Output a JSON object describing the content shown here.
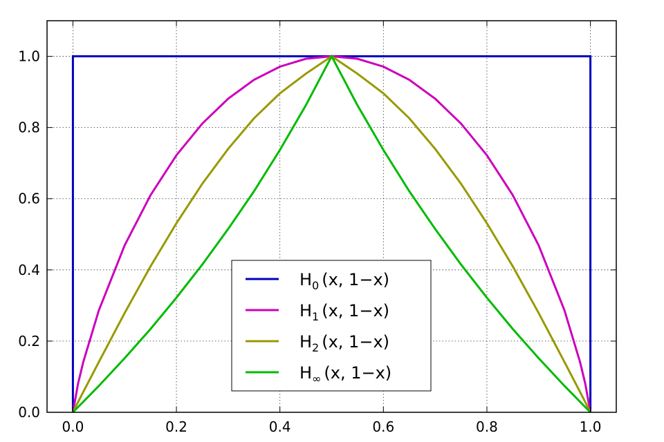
{
  "chart_data": {
    "type": "line",
    "title": "",
    "xlabel": "",
    "ylabel": "",
    "xlim": [
      -0.05,
      1.05
    ],
    "ylim": [
      0.0,
      1.1
    ],
    "grid": true,
    "legend_position": "lower-center",
    "x_ticks": [
      "0.0",
      "0.2",
      "0.4",
      "0.6",
      "0.8",
      "1.0"
    ],
    "y_ticks": [
      "0.0",
      "0.2",
      "0.4",
      "0.6",
      "0.8",
      "1.0"
    ],
    "series": [
      {
        "label_main": "H",
        "label_sub": "0",
        "label_rest": "(x, 1−x)",
        "color": "#0000bf",
        "x": [
          0.0,
          0.0,
          0.5,
          1.0,
          1.0
        ],
        "y": [
          0.0,
          1.0,
          1.0,
          1.0,
          0.0
        ]
      },
      {
        "label_main": "H",
        "label_sub": "1",
        "label_rest": "(x, 1−x)",
        "color": "#cc00bb",
        "x": [
          0.0,
          0.01,
          0.02,
          0.05,
          0.1,
          0.15,
          0.2,
          0.25,
          0.3,
          0.35,
          0.4,
          0.45,
          0.5,
          0.55,
          0.6,
          0.65,
          0.7,
          0.75,
          0.8,
          0.85,
          0.9,
          0.95,
          0.98,
          0.99,
          1.0
        ],
        "y": [
          0.0,
          0.081,
          0.141,
          0.286,
          0.469,
          0.61,
          0.722,
          0.811,
          0.881,
          0.934,
          0.971,
          0.993,
          1.0,
          0.993,
          0.971,
          0.934,
          0.881,
          0.811,
          0.722,
          0.61,
          0.469,
          0.286,
          0.141,
          0.081,
          0.0
        ]
      },
      {
        "label_main": "H",
        "label_sub": "2",
        "label_rest": "(x, 1−x)",
        "color": "#999900",
        "x": [
          0.0,
          0.01,
          0.02,
          0.05,
          0.1,
          0.15,
          0.2,
          0.25,
          0.3,
          0.35,
          0.4,
          0.45,
          0.5,
          0.55,
          0.6,
          0.65,
          0.7,
          0.75,
          0.8,
          0.85,
          0.9,
          0.95,
          0.98,
          0.99,
          1.0
        ],
        "y": [
          0.0,
          0.029,
          0.057,
          0.141,
          0.279,
          0.41,
          0.531,
          0.642,
          0.74,
          0.826,
          0.896,
          0.951,
          1.0,
          0.951,
          0.896,
          0.826,
          0.74,
          0.642,
          0.531,
          0.41,
          0.279,
          0.141,
          0.057,
          0.029,
          0.0
        ]
      },
      {
        "label_main": "H",
        "label_sub": "∞",
        "label_rest": "(x, 1−x)",
        "color": "#00bb00",
        "x": [
          0.0,
          0.05,
          0.1,
          0.15,
          0.2,
          0.25,
          0.3,
          0.35,
          0.4,
          0.45,
          0.5,
          0.55,
          0.6,
          0.65,
          0.7,
          0.75,
          0.8,
          0.85,
          0.9,
          0.95,
          1.0
        ],
        "y": [
          0.0,
          0.074,
          0.152,
          0.234,
          0.322,
          0.415,
          0.515,
          0.621,
          0.737,
          0.862,
          1.0,
          0.862,
          0.737,
          0.621,
          0.515,
          0.415,
          0.322,
          0.234,
          0.152,
          0.074,
          0.0
        ]
      }
    ]
  }
}
